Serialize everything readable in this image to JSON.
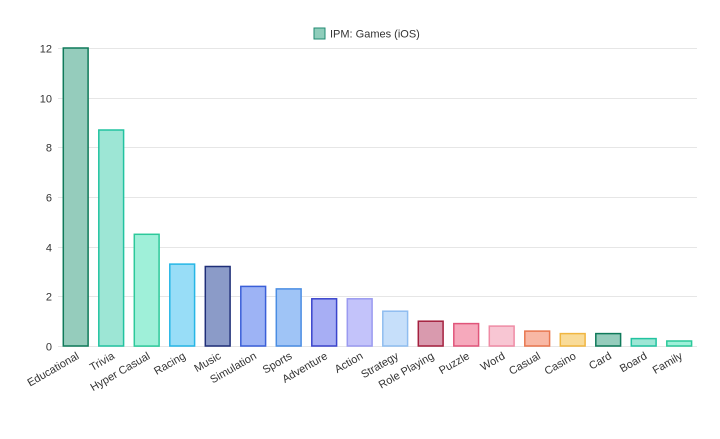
{
  "chart_data": {
    "type": "bar",
    "legend": {
      "position": "top-center",
      "entries": [
        {
          "label": "IPM: Games (iOS)",
          "fill": "#8fcdbb",
          "stroke": "#1f8a70"
        }
      ]
    },
    "categories": [
      "Educational",
      "Trivia",
      "Hyper Casual",
      "Racing",
      "Music",
      "Simulation",
      "Sports",
      "Adventure",
      "Action",
      "Strategy",
      "Role Playing",
      "Puzzle",
      "Word",
      "Casual",
      "Casino",
      "Card",
      "Board",
      "Family"
    ],
    "series": [
      {
        "name": "IPM: Games (iOS)",
        "values": [
          12,
          8.7,
          4.5,
          3.3,
          3.2,
          2.4,
          2.3,
          1.9,
          1.9,
          1.4,
          1.0,
          0.9,
          0.8,
          0.6,
          0.5,
          0.5,
          0.3,
          0.2
        ]
      }
    ],
    "bar_colors": [
      {
        "fill": "#95ccbc",
        "stroke": "#0f7a5a"
      },
      {
        "fill": "#9de6d5",
        "stroke": "#22c3a0"
      },
      {
        "fill": "#9ff0d9",
        "stroke": "#2cc99a"
      },
      {
        "fill": "#98ddf7",
        "stroke": "#26b6e6"
      },
      {
        "fill": "#8b9bc8",
        "stroke": "#1f2f78"
      },
      {
        "fill": "#9db3f5",
        "stroke": "#3a5fd8"
      },
      {
        "fill": "#9fc4f6",
        "stroke": "#4a8de3"
      },
      {
        "fill": "#a7aef4",
        "stroke": "#3a44cc"
      },
      {
        "fill": "#c3c3fa",
        "stroke": "#9a9af0"
      },
      {
        "fill": "#c6dffa",
        "stroke": "#8fbdf0"
      },
      {
        "fill": "#d99aae",
        "stroke": "#a4203e"
      },
      {
        "fill": "#f6a9bc",
        "stroke": "#e0557a"
      },
      {
        "fill": "#f8c6d3",
        "stroke": "#ef8ba5"
      },
      {
        "fill": "#f8b8a5",
        "stroke": "#e8774f"
      },
      {
        "fill": "#f9db98",
        "stroke": "#f0b640"
      },
      {
        "fill": "#95ccbc",
        "stroke": "#0f7a5a"
      },
      {
        "fill": "#9de6d5",
        "stroke": "#22c3a0"
      },
      {
        "fill": "#9ff0d9",
        "stroke": "#2cc99a"
      }
    ],
    "ylim": [
      0,
      12
    ],
    "yticks": [
      0,
      2,
      4,
      6,
      8,
      10,
      12
    ],
    "grid": true,
    "title": "",
    "xlabel": "",
    "ylabel": ""
  }
}
